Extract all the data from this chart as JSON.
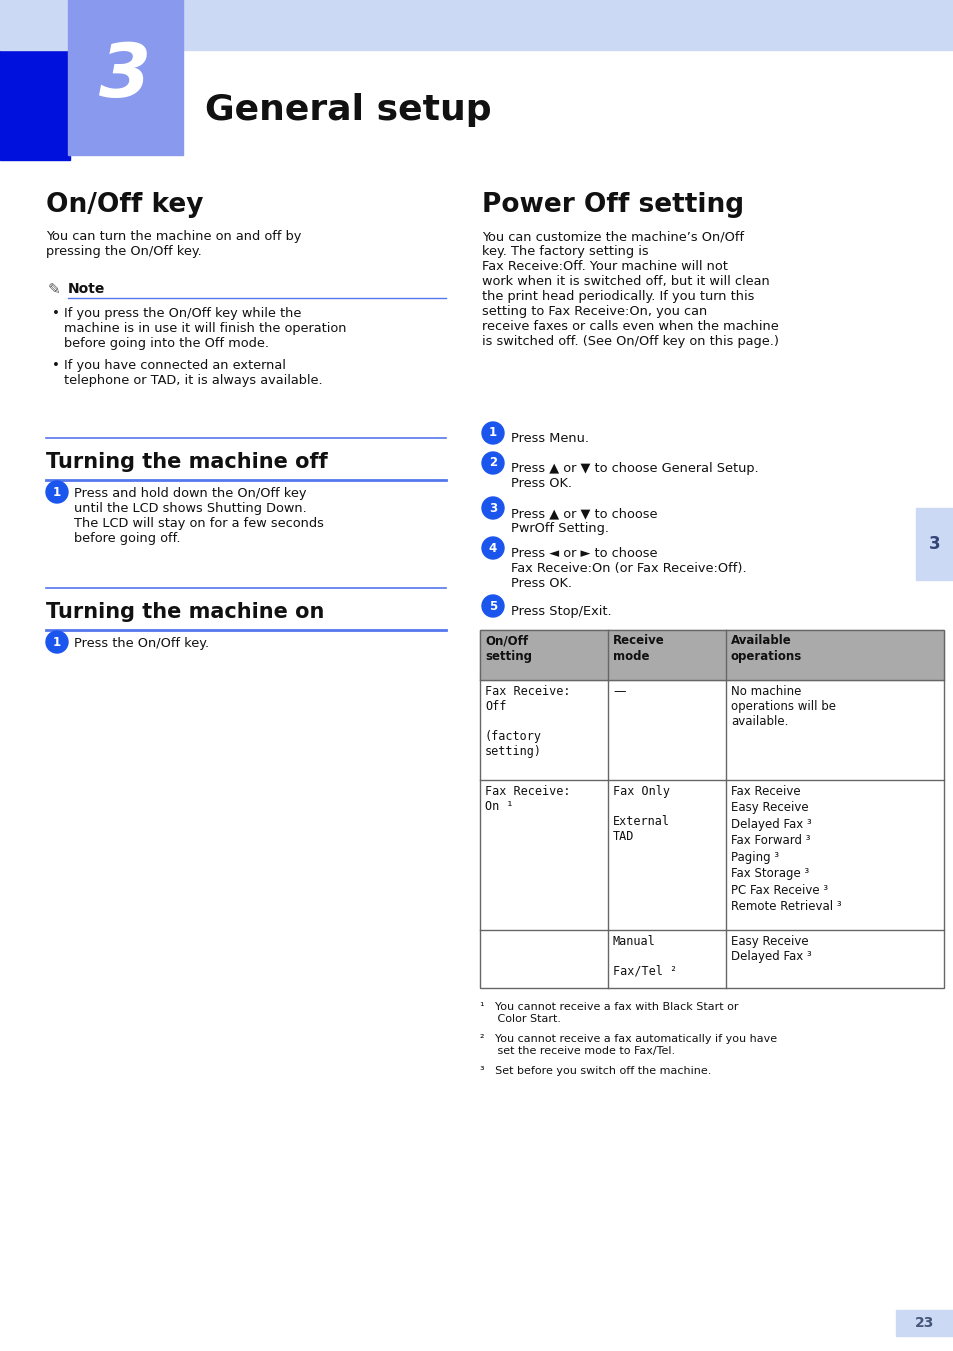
{
  "page_bg": "#ffffff",
  "header_bar_color": "#ccd9f5",
  "header_blue_box": "#1a44cc",
  "header_lightblue_box": "#7799ee",
  "chapter_num": "3",
  "chapter_title": "General setup",
  "blue_circle": "#1a55ee",
  "section_line": "#5577ee",
  "table_header_bg": "#aaaaaa",
  "table_border": "#666666",
  "right_tab_bg": "#ccd9f5",
  "page_num_bg": "#ccd9f5",
  "page_number": "23"
}
